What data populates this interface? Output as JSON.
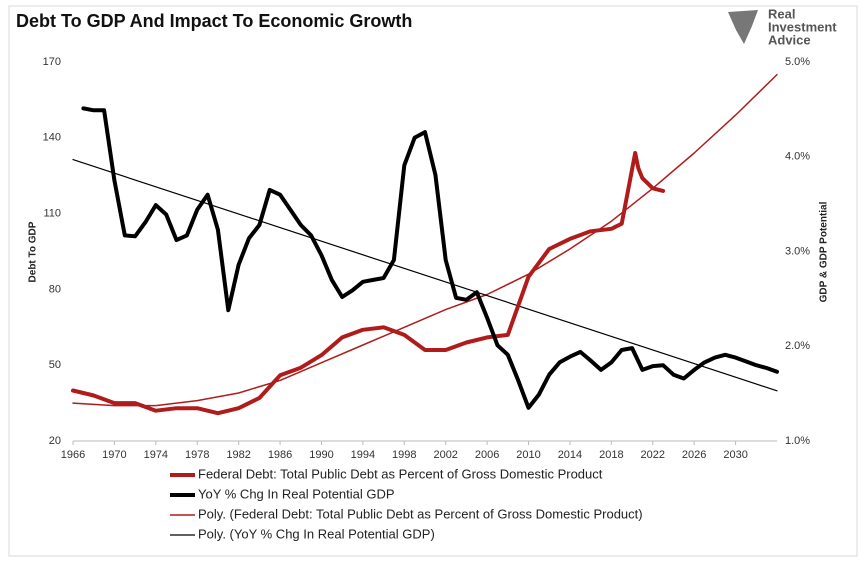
{
  "chart_data": {
    "type": "line",
    "title": "Debt To GDP And Impact To Economic Growth",
    "logo": [
      "Real",
      "Investment",
      "Advice"
    ],
    "y_label": "Debt To GDP",
    "y2_label": "GDP & GDP Potential",
    "xlim": [
      1966,
      2034
    ],
    "xticks": [
      1966,
      1970,
      1974,
      1978,
      1982,
      1986,
      1990,
      1994,
      1998,
      2002,
      2006,
      2010,
      2014,
      2018,
      2022,
      2026,
      2030
    ],
    "ylim": [
      20,
      170
    ],
    "yticks": [
      20,
      50,
      80,
      110,
      140,
      170
    ],
    "y2lim": [
      1.0,
      5.0
    ],
    "y2ticks": [
      {
        "value": 1.0,
        "label": "1.0%"
      },
      {
        "value": 2.0,
        "label": "2.0%"
      },
      {
        "value": 3.0,
        "label": "3.0%"
      },
      {
        "value": 4.0,
        "label": "4.0%"
      },
      {
        "value": 5.0,
        "label": "5.0%"
      }
    ],
    "series": [
      {
        "name": "Federal Debt: Total Public Debt as Percent of Gross Domestic Product",
        "color": "#b01c1c",
        "x": [
          1966,
          1968,
          1970,
          1972,
          1974,
          1976,
          1978,
          1980,
          1982,
          1984,
          1986,
          1988,
          1990,
          1992,
          1994,
          1996,
          1998,
          2000,
          2002,
          2004,
          2006,
          2008,
          2010,
          2012,
          2014,
          2016,
          2018,
          2019,
          2020.3,
          2020.6,
          2021,
          2022,
          2023
        ],
        "values": [
          40,
          38,
          35,
          35,
          32,
          33,
          33,
          31,
          33,
          37,
          46,
          49,
          54,
          61,
          64,
          65,
          62,
          56,
          56,
          59,
          61,
          62,
          85,
          96,
          100,
          103,
          104,
          106,
          134,
          128,
          124,
          120,
          119
        ]
      },
      {
        "name": "YoY % Chg In Real Potential GDP",
        "color": "#000000",
        "axis": "y2",
        "x": [
          1967,
          1968,
          1969,
          1970,
          1971,
          1972,
          1973,
          1974,
          1975,
          1976,
          1977,
          1978,
          1979,
          1980,
          1981,
          1982,
          1983,
          1984,
          1985,
          1986,
          1987,
          1988,
          1989,
          1990,
          1991,
          1992,
          1993,
          1994,
          1995,
          1996,
          1997,
          1998,
          1999,
          2000,
          2001,
          2002,
          2003,
          2004,
          2005,
          2006,
          2007,
          2008,
          2009,
          2010,
          2011,
          2012,
          2013,
          2014,
          2015,
          2016,
          2017,
          2018,
          2019,
          2020,
          2021,
          2022,
          2023,
          2024,
          2025,
          2026,
          2027,
          2028,
          2029,
          2030,
          2031,
          2032,
          2033,
          2034
        ],
        "values": [
          4.51,
          4.49,
          4.49,
          3.75,
          3.17,
          3.16,
          3.31,
          3.49,
          3.39,
          3.12,
          3.17,
          3.44,
          3.6,
          3.23,
          2.38,
          2.86,
          3.14,
          3.28,
          3.65,
          3.6,
          3.44,
          3.28,
          3.17,
          2.96,
          2.7,
          2.52,
          2.59,
          2.68,
          2.7,
          2.72,
          2.91,
          3.91,
          4.2,
          4.26,
          3.81,
          2.91,
          2.51,
          2.49,
          2.57,
          2.3,
          2.01,
          1.91,
          1.64,
          1.35,
          1.49,
          1.7,
          1.83,
          1.89,
          1.94,
          1.85,
          1.75,
          1.83,
          1.96,
          1.98,
          1.75,
          1.79,
          1.8,
          1.7,
          1.66,
          1.75,
          1.83,
          1.88,
          1.91,
          1.88,
          1.84,
          1.8,
          1.77,
          1.73
        ]
      },
      {
        "name": "Poly. (Federal Debt: Total Public Debt as Percent of Gross Domestic Product)",
        "color": "#b01c1c",
        "x": [
          1966,
          1970,
          1974,
          1978,
          1982,
          1986,
          1990,
          1994,
          1998,
          2002,
          2006,
          2010,
          2014,
          2018,
          2022,
          2026,
          2030,
          2034
        ],
        "values": [
          35,
          34,
          34,
          36,
          39,
          44,
          51,
          58,
          65,
          72,
          78,
          86,
          96,
          107,
          120,
          134,
          149,
          165
        ]
      },
      {
        "name": "Poly. (YoY % Chg In Real Potential GDP)",
        "color": "#000000",
        "axis": "y2",
        "x": [
          1966,
          2034
        ],
        "values": [
          3.97,
          1.53
        ]
      }
    ]
  }
}
